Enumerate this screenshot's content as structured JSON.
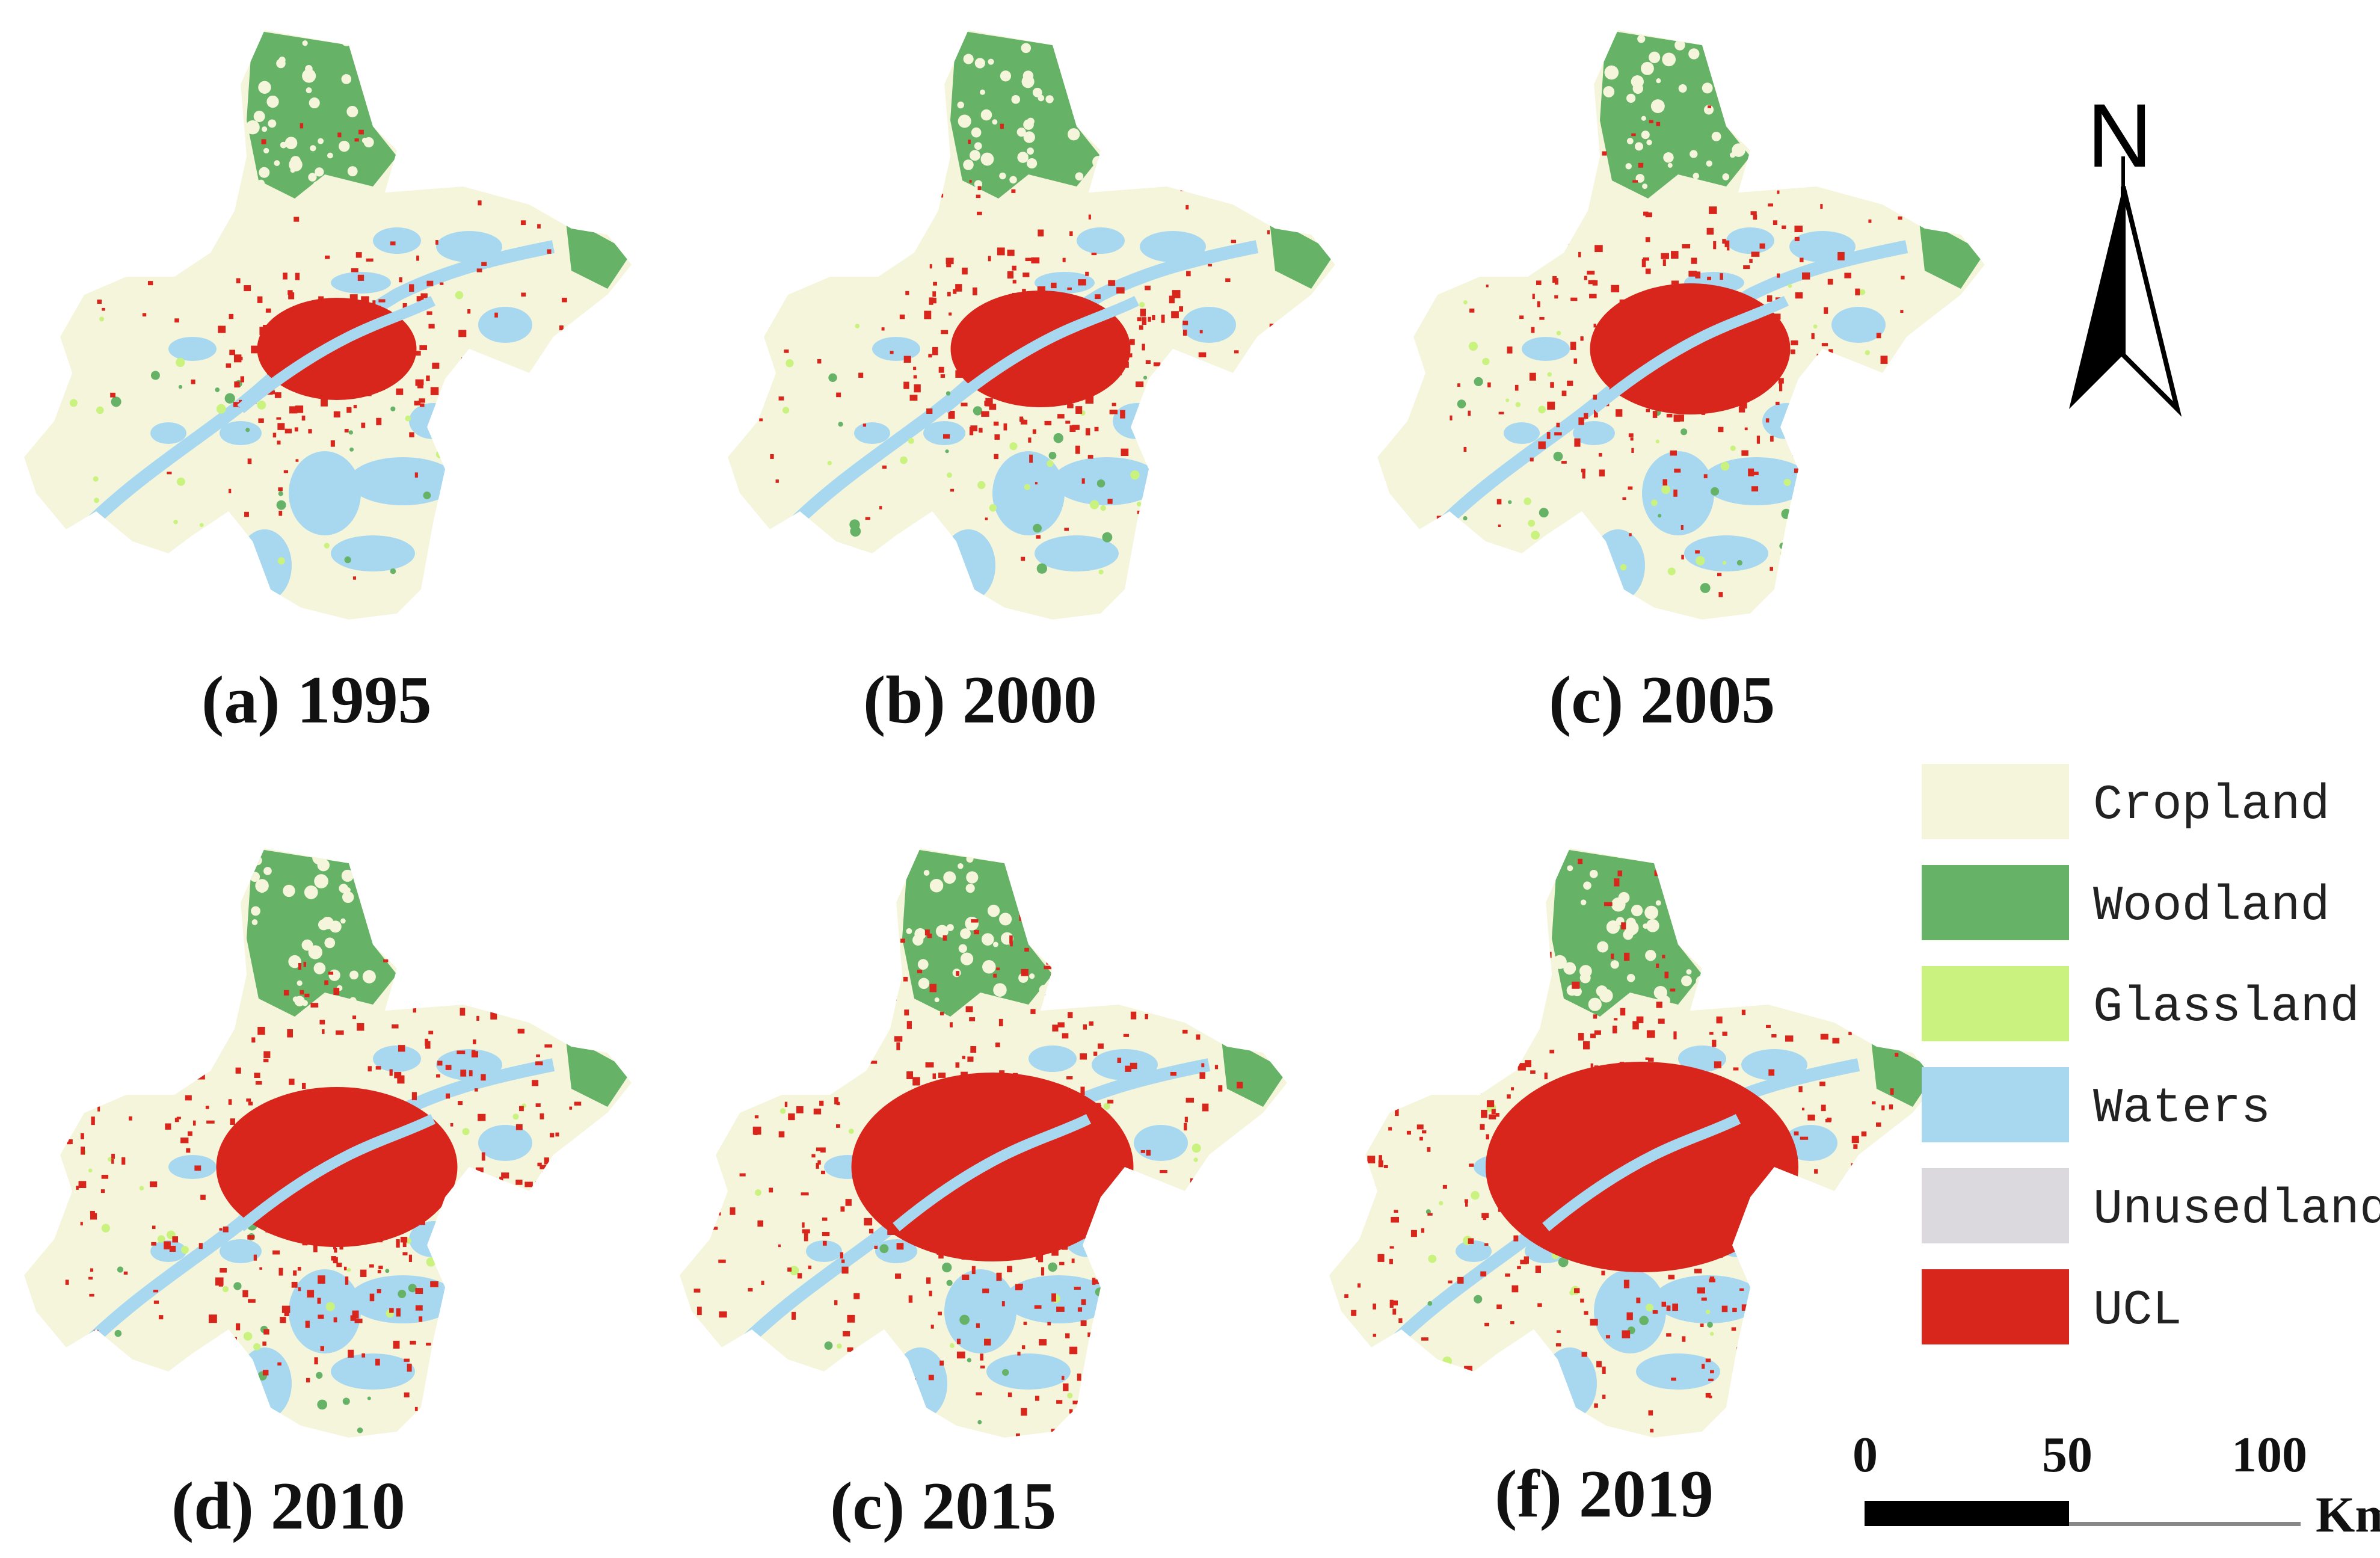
{
  "panels": [
    {
      "caption": "(a) 1995",
      "year": 1995,
      "ucl_level": 0.25
    },
    {
      "caption": "(b) 2000",
      "year": 2000,
      "ucl_level": 0.35
    },
    {
      "caption": "(c) 2005",
      "year": 2005,
      "ucl_level": 0.45
    },
    {
      "caption": "(d) 2010",
      "year": 2010,
      "ucl_level": 0.65
    },
    {
      "caption": "(c) 2015",
      "year": 2015,
      "ucl_level": 0.85
    },
    {
      "caption": "(f) 2019",
      "year": 2019,
      "ucl_level": 1.0
    }
  ],
  "north_arrow": {
    "label": "N"
  },
  "legend": {
    "items": [
      {
        "label": "Cropland",
        "color": "#f5f5dc"
      },
      {
        "label": "Woodland",
        "color": "#66b266"
      },
      {
        "label": "Glassland",
        "color": "#c9f27f"
      },
      {
        "label": "Waters",
        "color": "#a8d8f0"
      },
      {
        "label": "Unusedland",
        "color": "#dcd9de"
      },
      {
        "label": "UCL",
        "color": "#d9261c"
      }
    ]
  },
  "scale_bar": {
    "labels": [
      "0",
      "50",
      "100"
    ],
    "unit": "Km"
  }
}
